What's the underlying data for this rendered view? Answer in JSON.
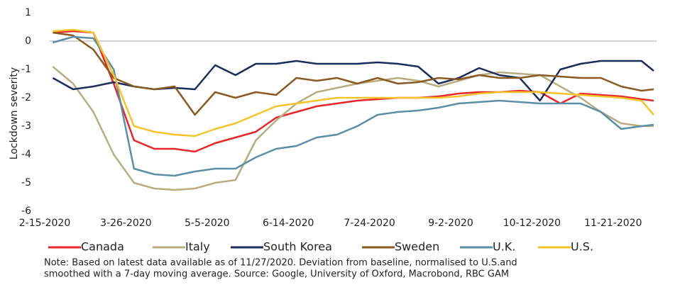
{
  "chart_data": {
    "type": "line",
    "y_label": "Lockdown severity",
    "x": [
      "2-19-2020",
      "2-29-2020",
      "3-10-2020",
      "3-20-2020",
      "3-30-2020",
      "4-9-2020",
      "4-19-2020",
      "4-29-2020",
      "5-9-2020",
      "5-19-2020",
      "5-29-2020",
      "6-8-2020",
      "6-18-2020",
      "6-28-2020",
      "7-8-2020",
      "7-18-2020",
      "7-28-2020",
      "8-7-2020",
      "8-17-2020",
      "8-27-2020",
      "9-6-2020",
      "9-16-2020",
      "9-26-2020",
      "10-6-2020",
      "10-16-2020",
      "10-26-2020",
      "11-5-2020",
      "11-15-2020",
      "11-25-2020",
      "12-5-2020",
      "12-11-2020"
    ],
    "series": [
      {
        "name": "Canada",
        "color": "#e8262a",
        "values": [
          0.3,
          0.35,
          0.3,
          -1.5,
          -3.5,
          -3.8,
          -3.8,
          -3.9,
          -3.6,
          -3.4,
          -3.2,
          -2.7,
          -2.5,
          -2.3,
          -2.2,
          -2.1,
          -2.05,
          -2.0,
          -2.0,
          -1.95,
          -1.85,
          -1.8,
          -1.8,
          -1.75,
          -1.8,
          -2.2,
          -1.85,
          -1.9,
          -1.95,
          -2.05,
          -2.1
        ]
      },
      {
        "name": "Italy",
        "color": "#b9ad80",
        "values": [
          -0.9,
          -1.5,
          -2.5,
          -4.0,
          -5.0,
          -5.2,
          -5.25,
          -5.2,
          -5.0,
          -4.9,
          -3.5,
          -2.8,
          -2.2,
          -1.8,
          -1.65,
          -1.5,
          -1.4,
          -1.3,
          -1.4,
          -1.6,
          -1.4,
          -1.2,
          -1.1,
          -1.15,
          -1.2,
          -1.6,
          -2.0,
          -2.5,
          -2.9,
          -3.0,
          -3.0
        ]
      },
      {
        "name": "South Korea",
        "color": "#1b2d5c",
        "values": [
          -1.3,
          -1.7,
          -1.6,
          -1.45,
          -1.6,
          -1.7,
          -1.65,
          -1.7,
          -0.85,
          -1.2,
          -0.8,
          -0.8,
          -0.7,
          -0.8,
          -0.8,
          -0.8,
          -0.75,
          -0.8,
          -0.9,
          -1.5,
          -1.3,
          -0.95,
          -1.2,
          -1.3,
          -2.1,
          -1.0,
          -0.8,
          -0.7,
          -0.7,
          -0.7,
          -1.05
        ]
      },
      {
        "name": "Sweden",
        "color": "#8a5a22",
        "values": [
          0.3,
          0.2,
          -0.3,
          -1.3,
          -1.6,
          -1.7,
          -1.6,
          -2.6,
          -1.8,
          -2.0,
          -1.8,
          -1.9,
          -1.3,
          -1.4,
          -1.3,
          -1.5,
          -1.3,
          -1.5,
          -1.45,
          -1.3,
          -1.35,
          -1.2,
          -1.3,
          -1.3,
          -1.2,
          -1.25,
          -1.3,
          -1.3,
          -1.6,
          -1.75,
          -1.7
        ]
      },
      {
        "name": "U.K.",
        "color": "#5b8fa8",
        "values": [
          -0.05,
          0.15,
          0.1,
          -1.0,
          -4.5,
          -4.7,
          -4.75,
          -4.6,
          -4.5,
          -4.5,
          -4.1,
          -3.8,
          -3.7,
          -3.4,
          -3.3,
          -3.0,
          -2.6,
          -2.5,
          -2.45,
          -2.35,
          -2.2,
          -2.15,
          -2.1,
          -2.15,
          -2.2,
          -2.2,
          -2.2,
          -2.5,
          -3.1,
          -3.0,
          -2.95
        ]
      },
      {
        "name": "U.S.",
        "color": "#f5c32c",
        "values": [
          0.35,
          0.4,
          0.3,
          -1.2,
          -3.0,
          -3.2,
          -3.3,
          -3.35,
          -3.1,
          -2.9,
          -2.6,
          -2.3,
          -2.2,
          -2.1,
          -2.0,
          -2.0,
          -2.0,
          -2.0,
          -2.0,
          -2.0,
          -1.95,
          -1.85,
          -1.8,
          -1.8,
          -1.8,
          -1.85,
          -1.9,
          -1.95,
          -2.0,
          -2.1,
          -2.6
        ]
      }
    ],
    "xlim": [
      "2-15-2020",
      "12-11-2020"
    ],
    "xticks": [
      "2-15-2020",
      "3-26-2020",
      "5-5-2020",
      "6-14-2020",
      "7-24-2020",
      "9-2-2020",
      "10-12-2020",
      "11-21-2020"
    ],
    "ylim": [
      -6,
      1
    ],
    "yticks": [
      -6,
      -5,
      -4,
      -3,
      -2,
      -1,
      0,
      1
    ],
    "note": [
      "Note: Based on latest data available as of 11/27/2020. Deviation from baseline, normalised to U.S.and",
      "smoothed with a 7-day moving average. Source: Google, University of Oxford, Macrobond, RBC GAM"
    ]
  }
}
